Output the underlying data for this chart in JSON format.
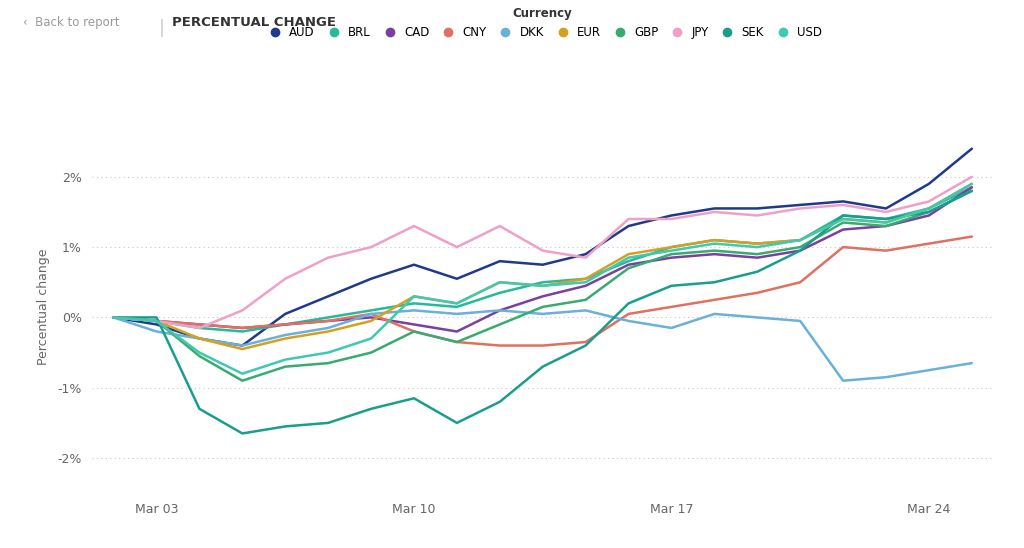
{
  "title": "PERCENTUAL CHANGE",
  "ylabel": "Percentual change",
  "background_color": "#ffffff",
  "grid_color": "#c8c8c8",
  "text_color": "#666666",
  "currencies": [
    "AUD",
    "BRL",
    "CAD",
    "CNY",
    "DKK",
    "EUR",
    "GBP",
    "JPY",
    "SEK",
    "USD"
  ],
  "legend_colors": {
    "AUD": "#1a3a8c",
    "BRL": "#2ab5a0",
    "CAD": "#7b3fa0",
    "CNY": "#e07060",
    "DKK": "#6aaed6",
    "EUR": "#d4a020",
    "GBP": "#3cb371",
    "JPY": "#f0a0c8",
    "SEK": "#20a090",
    "USD": "#40c8b0"
  },
  "ylim": [
    -2.5,
    2.8
  ],
  "yticks": [
    -2.0,
    -1.0,
    0.0,
    1.0,
    2.0
  ],
  "date_labels": [
    "Mar 03",
    "Mar 10",
    "Mar 17",
    "Mar 24"
  ],
  "series": {
    "AUD": [
      0.0,
      -0.1,
      -0.3,
      -0.4,
      0.05,
      0.3,
      0.55,
      0.75,
      0.55,
      0.8,
      0.75,
      0.9,
      1.3,
      1.45,
      1.55,
      1.55,
      1.6,
      1.65,
      1.55,
      1.9,
      2.4
    ],
    "BRL": [
      0.0,
      -0.05,
      -0.15,
      -0.2,
      -0.1,
      0.0,
      0.1,
      0.2,
      0.15,
      0.35,
      0.5,
      0.55,
      0.8,
      1.0,
      1.1,
      1.05,
      1.1,
      1.45,
      1.4,
      1.55,
      1.85
    ],
    "CAD": [
      0.0,
      -0.05,
      -0.1,
      -0.15,
      -0.1,
      -0.05,
      0.0,
      -0.1,
      -0.2,
      0.1,
      0.3,
      0.45,
      0.75,
      0.85,
      0.9,
      0.85,
      0.95,
      1.25,
      1.3,
      1.45,
      1.85
    ],
    "CNY": [
      0.0,
      -0.05,
      -0.1,
      -0.15,
      -0.1,
      -0.05,
      0.05,
      -0.2,
      -0.35,
      -0.4,
      -0.4,
      -0.35,
      0.05,
      0.15,
      0.25,
      0.35,
      0.5,
      1.0,
      0.95,
      1.05,
      1.15
    ],
    "DKK": [
      0.0,
      -0.2,
      -0.3,
      -0.4,
      -0.25,
      -0.15,
      0.05,
      0.1,
      0.05,
      0.1,
      0.05,
      0.1,
      -0.05,
      -0.15,
      0.05,
      0.0,
      -0.05,
      -0.9,
      -0.85,
      -0.75,
      -0.65
    ],
    "EUR": [
      0.0,
      -0.05,
      -0.3,
      -0.45,
      -0.3,
      -0.2,
      -0.05,
      0.3,
      0.2,
      0.5,
      0.45,
      0.55,
      0.9,
      1.0,
      1.1,
      1.05,
      1.1,
      1.4,
      1.35,
      1.55,
      1.9
    ],
    "GBP": [
      0.0,
      -0.05,
      -0.55,
      -0.9,
      -0.7,
      -0.65,
      -0.5,
      -0.2,
      -0.35,
      -0.1,
      0.15,
      0.25,
      0.7,
      0.9,
      0.95,
      0.9,
      1.0,
      1.35,
      1.3,
      1.5,
      1.8
    ],
    "JPY": [
      0.0,
      -0.05,
      -0.15,
      0.1,
      0.55,
      0.85,
      1.0,
      1.3,
      1.0,
      1.3,
      0.95,
      0.85,
      1.4,
      1.4,
      1.5,
      1.45,
      1.55,
      1.6,
      1.5,
      1.65,
      2.0
    ],
    "SEK": [
      0.0,
      0.0,
      -1.3,
      -1.65,
      -1.55,
      -1.5,
      -1.3,
      -1.15,
      -1.5,
      -1.2,
      -0.7,
      -0.4,
      0.2,
      0.45,
      0.5,
      0.65,
      0.95,
      1.45,
      1.4,
      1.5,
      1.8
    ],
    "USD": [
      0.0,
      -0.05,
      -0.5,
      -0.8,
      -0.6,
      -0.5,
      -0.3,
      0.3,
      0.2,
      0.5,
      0.45,
      0.5,
      0.85,
      0.95,
      1.05,
      1.0,
      1.1,
      1.4,
      1.35,
      1.55,
      1.9
    ]
  }
}
